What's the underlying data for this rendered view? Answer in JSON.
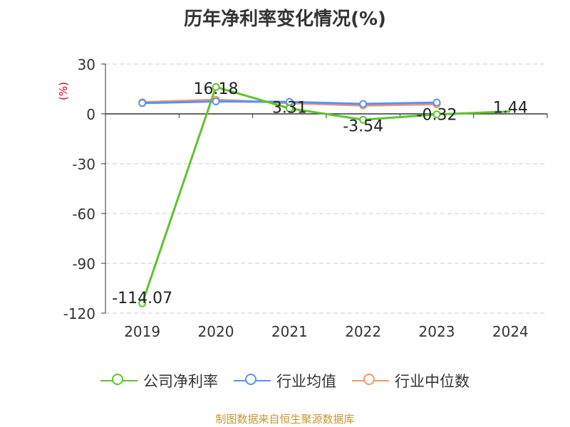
{
  "title": "历年净利率变化情况(%)",
  "source": "制图数据来自恒生聚源数据库",
  "colors": {
    "company": "#5cc42b",
    "industry_avg": "#5b8ff9",
    "industry_median": "#f29766",
    "grid": "#cccccc",
    "axis": "#333333",
    "unit": "#d0021b"
  },
  "chart_data": {
    "type": "line",
    "title": "历年净利率变化情况(%)",
    "ylabel": "(%)",
    "xlabel": "",
    "ylim": [
      -120,
      30
    ],
    "yticks": [
      30,
      0,
      -30,
      -60,
      -90,
      -120
    ],
    "grid": true,
    "legend_position": "bottom",
    "categories": [
      "2019",
      "2020",
      "2021",
      "2022",
      "2023",
      "2024"
    ],
    "series": [
      {
        "name": "公司净利率",
        "color": "#5cc42b",
        "show_labels": true,
        "values": [
          -114.07,
          16.18,
          3.31,
          -3.54,
          -0.32,
          1.44
        ],
        "labels": [
          "-114.07",
          "16.18",
          "3.31",
          "-3.54",
          "-0.32",
          "1.44"
        ]
      },
      {
        "name": "行业均值",
        "color": "#5b8ff9",
        "show_labels": false,
        "values": [
          6.5,
          7.5,
          7.2,
          6.0,
          6.8,
          null
        ]
      },
      {
        "name": "行业中位数",
        "color": "#f29766",
        "show_labels": false,
        "values": [
          7.0,
          8.5,
          6.5,
          5.0,
          5.8,
          null
        ]
      }
    ]
  }
}
